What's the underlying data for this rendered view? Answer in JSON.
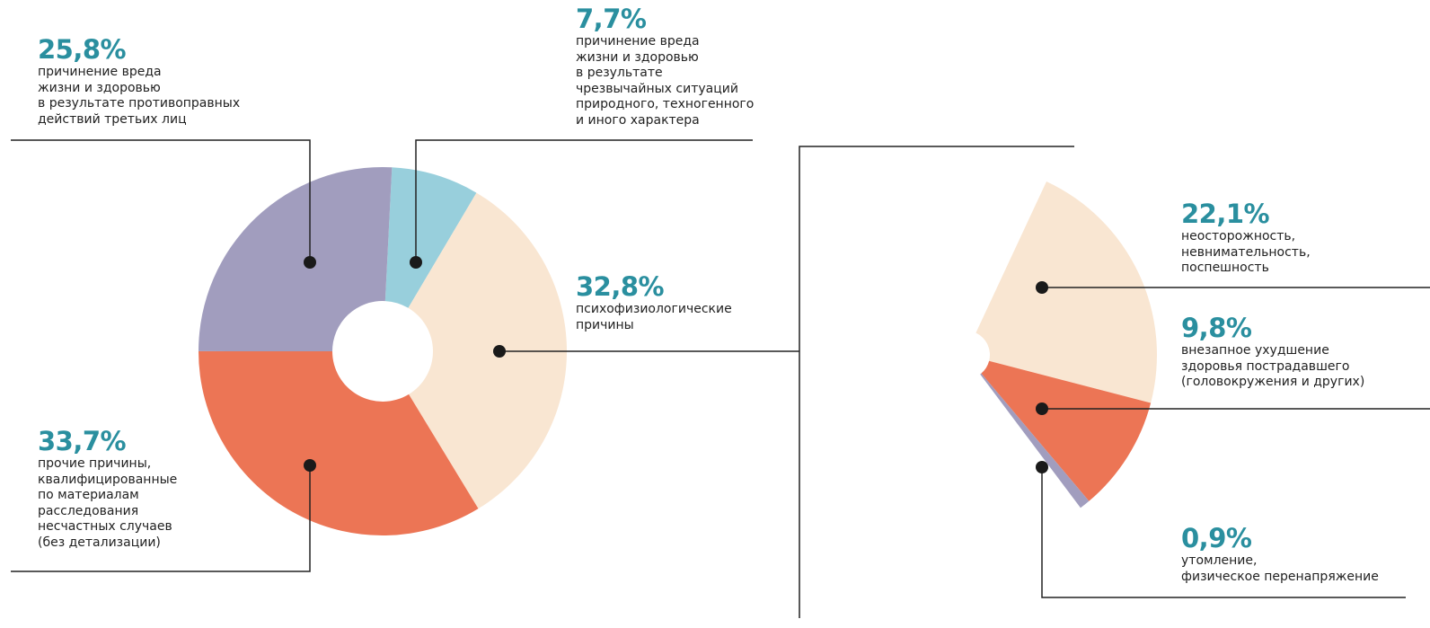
{
  "chart_data": [
    {
      "type": "donut",
      "categories": [
        "причинение вреда\nжизни и здоровью\nв результате\nчрезвычайных ситуаций\nприродного, техногенного\nи иного характера",
        "психофизиологические\nпричины",
        "прочие причины,\nквалифицированные\nпо материалам\nрасследования\nнесчастных случаев\n(без детализации)",
        "причинение вреда\nжизни и здоровью\nв результате противоправных\nдействий третьих лиц"
      ],
      "values": [
        7.7,
        32.8,
        33.7,
        25.8
      ],
      "value_labels": [
        "7,7%",
        "32,8%",
        "33,7%",
        "25,8%"
      ],
      "colors": [
        "#98cfdc",
        "#f9e6d2",
        "#ec7555",
        "#a19dbe"
      ]
    },
    {
      "type": "fan",
      "categories": [
        "неосторожность,\nневнимательность,\nпоспешность",
        "внезапное ухудшение\nздоровья пострадавшего\n(головокружения и других)",
        "утомление,\nфизическое перенапряжение"
      ],
      "values": [
        22.1,
        9.8,
        0.9
      ],
      "value_labels": [
        "22,1%",
        "9,8%",
        "0,9%"
      ],
      "colors": [
        "#f9e6d2",
        "#ec7555",
        "#a19dbe"
      ]
    }
  ]
}
